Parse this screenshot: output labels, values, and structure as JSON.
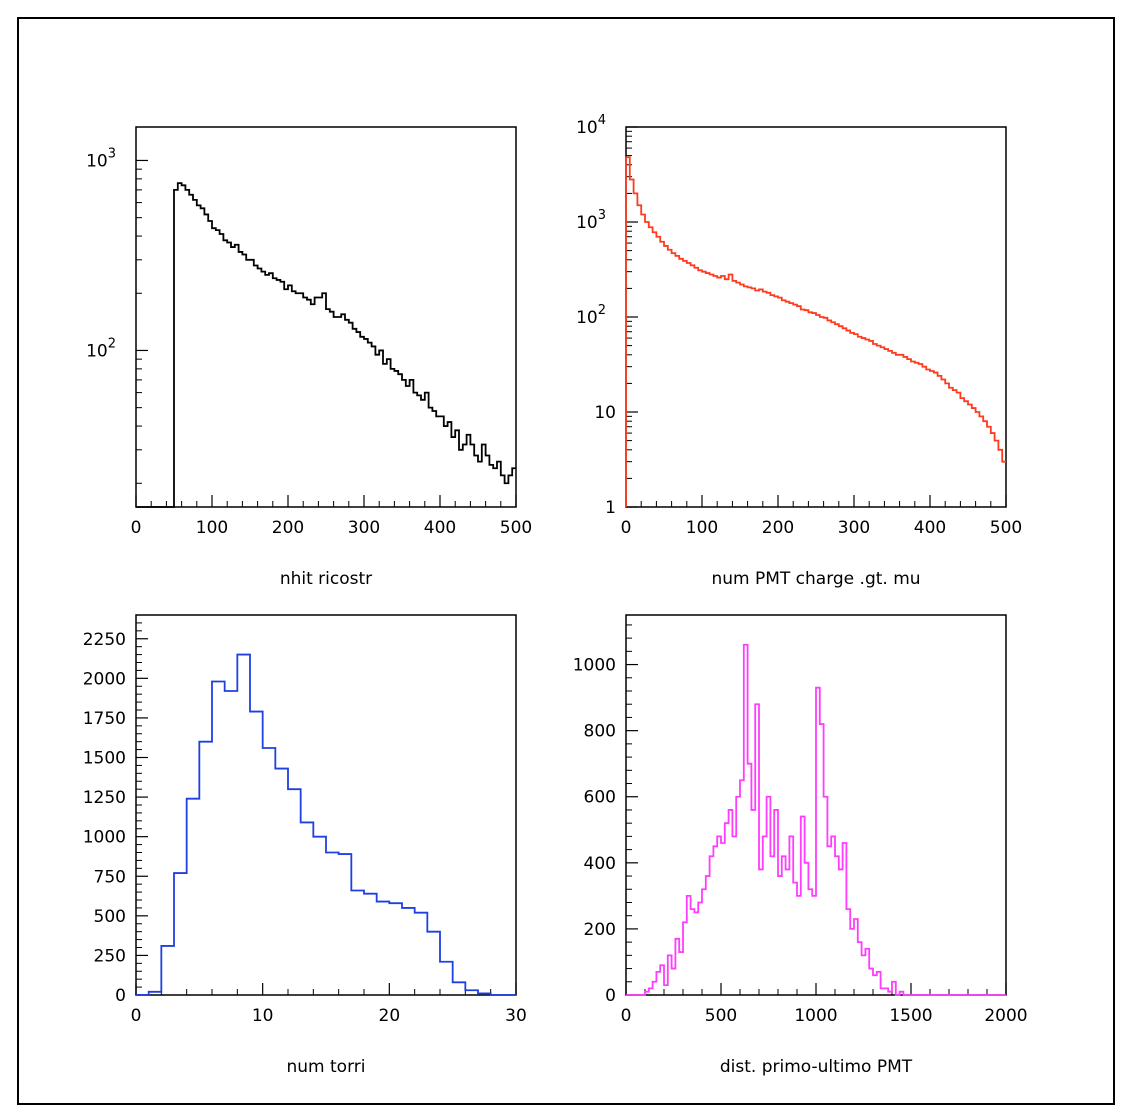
{
  "chart_data": [
    {
      "type": "histogram",
      "xlabel": "nhit ricostr",
      "ylabel": "",
      "xlim": [
        0,
        500
      ],
      "ylim": [
        15,
        1500
      ],
      "yscale": "log",
      "color": "#000000",
      "xticks": [
        0,
        100,
        200,
        300,
        400,
        500
      ],
      "xtick_labels": [
        "0",
        "100",
        "200",
        "300",
        "400",
        "500"
      ],
      "yticks": [
        100,
        1000
      ],
      "ytick_labels": [
        "10^2",
        "10^3"
      ],
      "x_start": 0,
      "bin_width": 5,
      "values": [
        0,
        0,
        0,
        0,
        0,
        0,
        0,
        0,
        0,
        0,
        700,
        760,
        740,
        700,
        660,
        620,
        580,
        560,
        520,
        480,
        440,
        430,
        410,
        380,
        370,
        350,
        360,
        330,
        320,
        300,
        300,
        280,
        270,
        260,
        250,
        255,
        240,
        235,
        230,
        210,
        220,
        205,
        200,
        200,
        190,
        185,
        175,
        190,
        190,
        200,
        165,
        160,
        150,
        150,
        155,
        145,
        140,
        130,
        125,
        118,
        115,
        110,
        105,
        95,
        100,
        85,
        90,
        80,
        78,
        75,
        70,
        65,
        70,
        60,
        58,
        55,
        60,
        50,
        48,
        45,
        45,
        40,
        42,
        35,
        38,
        30,
        32,
        36,
        32,
        28,
        26,
        32,
        28,
        25,
        24,
        26,
        22,
        20,
        22,
        24
      ]
    },
    {
      "type": "histogram",
      "xlabel": "num PMT charge .gt. mu",
      "ylabel": "",
      "xlim": [
        0,
        500
      ],
      "ylim": [
        1,
        10000
      ],
      "yscale": "log",
      "color": "#ff3b1f",
      "xticks": [
        0,
        100,
        200,
        300,
        400,
        500
      ],
      "xtick_labels": [
        "0",
        "100",
        "200",
        "300",
        "400",
        "500"
      ],
      "yticks": [
        1,
        10,
        100,
        1000,
        10000
      ],
      "ytick_labels": [
        "1",
        "10",
        "10^2",
        "10^3",
        "10^4"
      ],
      "x_start": 0,
      "bin_width": 5,
      "values": [
        4800,
        2800,
        2000,
        1500,
        1200,
        1000,
        880,
        780,
        700,
        620,
        560,
        510,
        470,
        440,
        410,
        390,
        370,
        350,
        330,
        310,
        300,
        290,
        280,
        270,
        260,
        270,
        250,
        280,
        240,
        230,
        220,
        210,
        205,
        200,
        190,
        195,
        185,
        180,
        170,
        165,
        160,
        150,
        145,
        140,
        135,
        130,
        120,
        118,
        112,
        110,
        105,
        100,
        98,
        92,
        88,
        84,
        80,
        76,
        72,
        68,
        66,
        62,
        60,
        58,
        56,
        52,
        50,
        48,
        46,
        44,
        42,
        40,
        40,
        38,
        36,
        34,
        33,
        32,
        30,
        28,
        27,
        26,
        24,
        22,
        20,
        18,
        17,
        16,
        14,
        13,
        12,
        11,
        10,
        9,
        8,
        7,
        6,
        5,
        4,
        3
      ]
    },
    {
      "type": "histogram",
      "xlabel": "num torri",
      "ylabel": "",
      "xlim": [
        0,
        30
      ],
      "ylim": [
        0,
        2400
      ],
      "yscale": "linear",
      "color": "#1f40e0",
      "xticks": [
        0,
        10,
        20,
        30
      ],
      "xtick_labels": [
        "0",
        "10",
        "20",
        "30"
      ],
      "yticks": [
        0,
        250,
        500,
        750,
        1000,
        1250,
        1500,
        1750,
        2000,
        2250
      ],
      "ytick_labels": [
        "0",
        "250",
        "500",
        "750",
        "1000",
        "1250",
        "1500",
        "1750",
        "2000",
        "2250"
      ],
      "x_start": 0,
      "bin_width": 1,
      "values": [
        0,
        20,
        310,
        770,
        1240,
        1600,
        1980,
        1920,
        2150,
        1790,
        1560,
        1430,
        1300,
        1090,
        1000,
        900,
        890,
        660,
        640,
        590,
        580,
        550,
        520,
        400,
        210,
        80,
        30,
        10,
        0,
        0
      ]
    },
    {
      "type": "histogram",
      "xlabel": "dist. primo-ultimo PMT",
      "ylabel": "",
      "xlim": [
        0,
        2000
      ],
      "ylim": [
        0,
        1150
      ],
      "yscale": "linear",
      "color": "#ff3cff",
      "xticks": [
        0,
        500,
        1000,
        1500,
        2000
      ],
      "xtick_labels": [
        "0",
        "500",
        "1000",
        "1500",
        "2000"
      ],
      "yticks": [
        0,
        200,
        400,
        600,
        800,
        1000
      ],
      "ytick_labels": [
        "0",
        "200",
        "400",
        "600",
        "800",
        "1000"
      ],
      "x_start": 0,
      "bin_width": 20,
      "values": [
        0,
        0,
        0,
        0,
        0,
        10,
        20,
        40,
        70,
        90,
        30,
        120,
        80,
        170,
        130,
        220,
        300,
        260,
        250,
        280,
        320,
        360,
        420,
        450,
        480,
        460,
        520,
        560,
        480,
        600,
        650,
        1060,
        700,
        560,
        880,
        380,
        480,
        600,
        420,
        560,
        360,
        420,
        380,
        480,
        340,
        300,
        540,
        400,
        320,
        300,
        930,
        820,
        600,
        450,
        480,
        420,
        380,
        460,
        260,
        200,
        230,
        160,
        120,
        140,
        80,
        60,
        70,
        20,
        20,
        10,
        40,
        0,
        10,
        0,
        0,
        0,
        0,
        0,
        0,
        0,
        0,
        0,
        0,
        0,
        0,
        0,
        0,
        0,
        0,
        0,
        0,
        0,
        0,
        0,
        0,
        0,
        0,
        0,
        0,
        0
      ]
    }
  ]
}
